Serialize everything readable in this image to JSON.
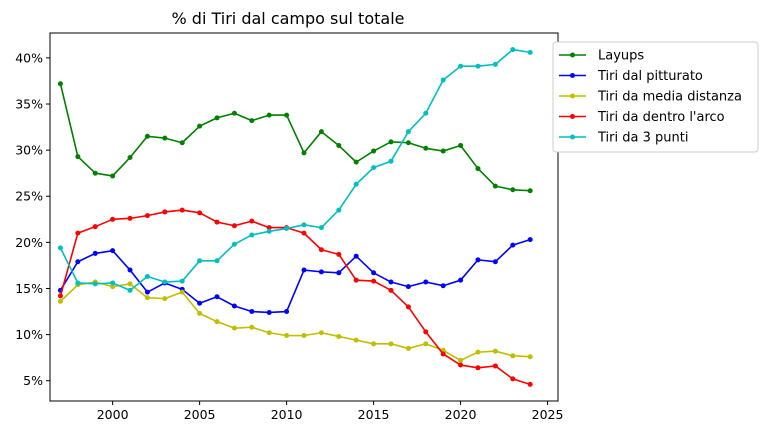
{
  "chart_data": {
    "type": "line",
    "title": "% di Tiri dal campo sul totale",
    "xlabel": "",
    "ylabel": "",
    "xlim": [
      1996.4,
      2025.6
    ],
    "ylim": [
      2.8,
      42.7
    ],
    "x_ticks": [
      2000,
      2005,
      2010,
      2015,
      2020,
      2025
    ],
    "y_ticks": [
      5,
      10,
      15,
      20,
      25,
      30,
      35,
      40
    ],
    "y_tick_suffix": "%",
    "grid": false,
    "legend_position": "outside-upper-right",
    "x": [
      1997,
      1998,
      1999,
      2000,
      2001,
      2002,
      2003,
      2004,
      2005,
      2006,
      2007,
      2008,
      2009,
      2010,
      2011,
      2012,
      2013,
      2014,
      2015,
      2016,
      2017,
      2018,
      2019,
      2020,
      2021,
      2022,
      2023,
      2024
    ],
    "series": [
      {
        "name": "Layups",
        "color": "#008000",
        "values": [
          37.2,
          29.3,
          27.5,
          27.2,
          29.2,
          31.5,
          31.3,
          30.8,
          32.6,
          33.5,
          34.0,
          33.2,
          33.8,
          33.8,
          29.7,
          32.0,
          30.5,
          28.7,
          29.9,
          30.9,
          30.8,
          30.2,
          29.9,
          30.5,
          28.0,
          26.1,
          25.7,
          25.6
        ]
      },
      {
        "name": "Tiri dal pitturato",
        "color": "#0000ff",
        "values": [
          14.8,
          17.9,
          18.8,
          19.1,
          17.0,
          14.6,
          15.6,
          14.9,
          13.4,
          14.1,
          13.1,
          12.5,
          12.4,
          12.5,
          17.0,
          16.8,
          16.7,
          18.5,
          16.7,
          15.7,
          15.2,
          15.7,
          15.3,
          15.9,
          18.1,
          17.9,
          19.7,
          20.3
        ]
      },
      {
        "name": "Tiri da media distanza",
        "color": "#bfbf00",
        "values": [
          13.6,
          15.4,
          15.7,
          15.2,
          15.5,
          14.0,
          13.9,
          14.6,
          12.3,
          11.4,
          10.7,
          10.8,
          10.2,
          9.9,
          9.9,
          10.2,
          9.8,
          9.4,
          9.0,
          9.0,
          8.5,
          9.0,
          8.3,
          7.2,
          8.1,
          8.2,
          7.7,
          7.6
        ]
      },
      {
        "name": "Tiri da dentro l'arco",
        "color": "#ff0000",
        "values": [
          14.2,
          21.0,
          21.7,
          22.5,
          22.6,
          22.9,
          23.3,
          23.5,
          23.2,
          22.2,
          21.8,
          22.3,
          21.6,
          21.6,
          21.0,
          19.2,
          18.7,
          15.9,
          15.8,
          14.8,
          13.0,
          10.3,
          7.9,
          6.7,
          6.4,
          6.6,
          5.2,
          4.6
        ]
      },
      {
        "name": "Tiri da 3 punti",
        "color": "#00bfbf",
        "values": [
          19.4,
          15.6,
          15.5,
          15.6,
          14.8,
          16.3,
          15.7,
          15.8,
          18.0,
          18.0,
          19.8,
          20.8,
          21.2,
          21.5,
          21.9,
          21.6,
          23.5,
          26.3,
          28.1,
          28.8,
          32.0,
          34.0,
          37.6,
          39.1,
          39.1,
          39.3,
          40.9,
          40.6
        ]
      }
    ]
  }
}
